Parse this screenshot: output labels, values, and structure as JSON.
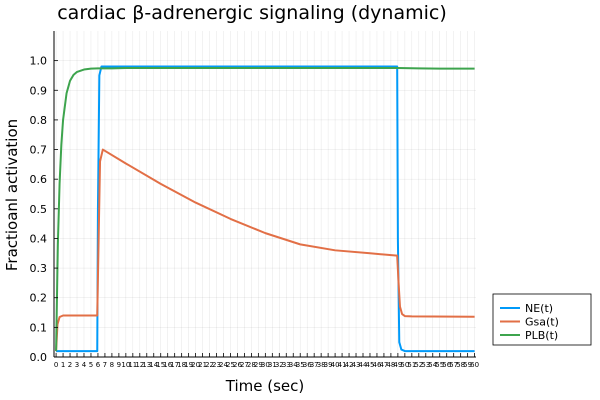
{
  "chart_data": {
    "type": "line",
    "title": "cardiac β-adrenergic signaling (dynamic)",
    "xlabel": "Time (sec)",
    "ylabel": "Fractioanl activation",
    "xlim": [
      -0.3,
      60.2
    ],
    "ylim": [
      0,
      1.1
    ],
    "xticks": [
      0,
      1,
      2,
      3,
      4,
      5,
      6,
      7,
      8,
      9,
      10,
      11,
      12,
      13,
      14,
      15,
      16,
      17,
      18,
      19,
      20,
      21,
      22,
      23,
      24,
      25,
      26,
      27,
      28,
      29,
      30,
      31,
      32,
      33,
      34,
      35,
      36,
      37,
      38,
      39,
      40,
      41,
      42,
      43,
      44,
      45,
      46,
      47,
      48,
      49,
      50,
      51,
      52,
      53,
      54,
      55,
      56,
      57,
      58,
      59,
      60
    ],
    "xtick_labels": [
      "0",
      "1",
      "2",
      "3",
      "4",
      "5",
      "6",
      "7",
      "8",
      "9",
      "10",
      "11",
      "12",
      "13",
      "14",
      "15",
      "16",
      "17",
      "18",
      "19",
      "20",
      "21",
      "22",
      "23",
      "24",
      "25",
      "26",
      "27",
      "28",
      "29",
      "30",
      "31",
      "32",
      "33",
      "34",
      "35",
      "36",
      "37",
      "38",
      "39",
      "40",
      "41",
      "42",
      "43",
      "44",
      "45",
      "46",
      "47",
      "48",
      "49",
      "50",
      "51",
      "52",
      "53",
      "54",
      "55",
      "56",
      "57",
      "58",
      "59",
      "60"
    ],
    "yticks": [
      0,
      0.1,
      0.2,
      0.3,
      0.4,
      0.5,
      0.6,
      0.7,
      0.8,
      0.9,
      1.0
    ],
    "ytick_labels": [
      "0.0",
      "0.1",
      "0.2",
      "0.3",
      "0.4",
      "0.5",
      "0.6",
      "0.7",
      "0.8",
      "0.9",
      "1.0"
    ],
    "grid": true,
    "legend_position": "outside-bottom-right",
    "series": [
      {
        "name": "NE(t)",
        "color": "#009af9",
        "x": [
          0,
          5.9,
          6.0,
          6.2,
          6.5,
          48.9,
          49.0,
          49.2,
          49.5,
          50,
          60
        ],
        "y": [
          0.02,
          0.02,
          0.5,
          0.95,
          0.98,
          0.98,
          0.4,
          0.05,
          0.025,
          0.02,
          0.02
        ]
      },
      {
        "name": "Gsa(t)",
        "color": "#e26f46",
        "x": [
          0,
          0.2,
          0.5,
          1,
          5.9,
          6.1,
          6.3,
          6.7,
          10,
          15,
          20,
          25,
          30,
          35,
          40,
          45,
          48.9,
          49.1,
          49.3,
          49.6,
          50,
          51,
          60
        ],
        "y": [
          0.02,
          0.11,
          0.135,
          0.14,
          0.14,
          0.4,
          0.66,
          0.7,
          0.653,
          0.584,
          0.521,
          0.466,
          0.418,
          0.38,
          0.36,
          0.35,
          0.342,
          0.25,
          0.17,
          0.145,
          0.138,
          0.137,
          0.136
        ]
      },
      {
        "name": "PLB(t)",
        "color": "#3da44d",
        "x": [
          0,
          0.25,
          0.5,
          0.75,
          1,
          1.5,
          2,
          2.5,
          3,
          4,
          5,
          6,
          8,
          10,
          20,
          30,
          40,
          49,
          52,
          55,
          60
        ],
        "y": [
          0.02,
          0.38,
          0.585,
          0.715,
          0.8,
          0.89,
          0.932,
          0.952,
          0.962,
          0.97,
          0.973,
          0.974,
          0.974,
          0.975,
          0.975,
          0.975,
          0.975,
          0.975,
          0.974,
          0.973,
          0.973
        ]
      }
    ]
  }
}
